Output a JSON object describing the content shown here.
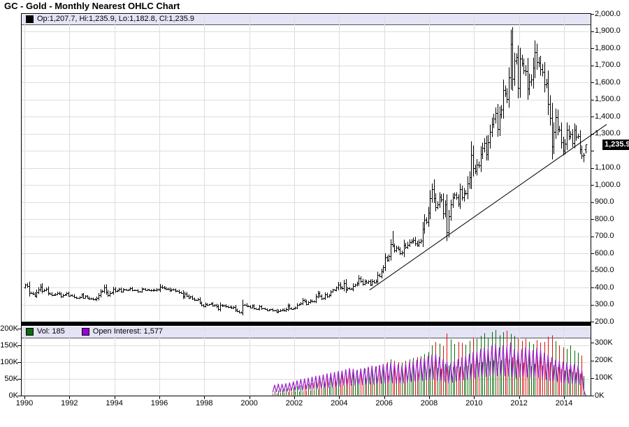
{
  "title": "GC - Gold - Monthly Nearest OHLC Chart",
  "main_panel": {
    "legend_text": "Op:1,207.7, Hi:1,235.9, Lo:1,182.8, Cl:1,235.9",
    "legend_marker_color": "#000000",
    "price_tag": "1,235.9",
    "price_tag_value": 1235.9,
    "price_axis": {
      "min": 200,
      "max": 2000,
      "step": 100
    },
    "price_axis_labels": [
      "2,000.0",
      "1,900.0",
      "1,800.0",
      "1,700.0",
      "1,600.0",
      "1,500.0",
      "1,400.0",
      "1,300.0",
      "1,100.0",
      "1,000.0",
      "900.0",
      "800.0",
      "700.0",
      "600.0",
      "500.0",
      "400.0",
      "300.0",
      "200.0"
    ],
    "price_axis_label_values": [
      2000,
      1900,
      1800,
      1700,
      1600,
      1500,
      1400,
      1300,
      1100,
      1000,
      900,
      800,
      700,
      600,
      500,
      400,
      300,
      200
    ]
  },
  "volume_panel": {
    "vol_legend_text": "Vol: 185",
    "oi_legend_text": "Open Interest: 1,577",
    "left_axis_labels": [
      "200K",
      "150K",
      "100K",
      "50K",
      "0K"
    ],
    "left_axis_values_K": [
      200,
      150,
      100,
      50,
      0
    ],
    "right_axis_labels": [
      "300K",
      "200K",
      "100K",
      "0K"
    ],
    "right_axis_values_K": [
      300,
      200,
      100,
      0
    ]
  },
  "x_axis": {
    "labels": [
      "1990",
      "1992",
      "1994",
      "1996",
      "1998",
      "2000",
      "2002",
      "2004",
      "2006",
      "2008",
      "2010",
      "2012",
      "2014"
    ],
    "years": [
      1990,
      1992,
      1994,
      1996,
      1998,
      2000,
      2002,
      2004,
      2006,
      2008,
      2010,
      2012,
      2014
    ]
  },
  "colors": {
    "strip_background": "#E4E4F6",
    "gridline": "#DDDDDD",
    "ohlc_bar": "#000000",
    "trendline": "#000000",
    "volume_up": "#0B6B0B",
    "volume_down": "#DD1111",
    "open_interest": "#A028C8",
    "oi_legend_swatch": "#9900DD",
    "price_tag_bg": "#000000",
    "price_tag_text": "#FFFFFF",
    "border": "#000000"
  },
  "chart_data": [
    {
      "type": "ohlc",
      "title": "GC - Gold - Monthly Nearest OHLC Chart",
      "xlabel": "",
      "ylabel": "",
      "x_axis_year_range": [
        1989.85,
        2015.2
      ],
      "price_axis_range": [
        200,
        2000
      ],
      "grid": true,
      "first_open": 400,
      "monthly_closes": {
        "1990": [
          415,
          408,
          369,
          368,
          363,
          352,
          372,
          388,
          406,
          380,
          384,
          391
        ],
        "1991": [
          366,
          363,
          356,
          357,
          361,
          368,
          362,
          347,
          355,
          358,
          366,
          353
        ],
        "1992": [
          354,
          353,
          342,
          337,
          337,
          343,
          358,
          340,
          349,
          339,
          334,
          333
        ],
        "1993": [
          330,
          329,
          337,
          354,
          375,
          378,
          400,
          372,
          355,
          369,
          370,
          391
        ],
        "1994": [
          378,
          382,
          390,
          377,
          387,
          386,
          385,
          387,
          395,
          384,
          383,
          383
        ],
        "1995": [
          375,
          376,
          392,
          390,
          385,
          387,
          383,
          382,
          384,
          383,
          387,
          387
        ],
        "1996": [
          405,
          400,
          396,
          391,
          390,
          382,
          387,
          386,
          379,
          379,
          371,
          369
        ],
        "1997": [
          345,
          364,
          351,
          340,
          345,
          334,
          326,
          325,
          332,
          311,
          296,
          289
        ],
        "1998": [
          304,
          297,
          301,
          308,
          293,
          296,
          288,
          273,
          296,
          292,
          294,
          288
        ],
        "1999": [
          285,
          287,
          280,
          286,
          268,
          261,
          255,
          255,
          299,
          300,
          291,
          290
        ],
        "2000": [
          283,
          293,
          278,
          275,
          272,
          289,
          276,
          277,
          273,
          265,
          269,
          272
        ],
        "2001": [
          264,
          266,
          257,
          263,
          267,
          270,
          265,
          273,
          293,
          278,
          274,
          277
        ],
        "2002": [
          282,
          297,
          301,
          308,
          327,
          319,
          304,
          313,
          323,
          317,
          319,
          347
        ],
        "2003": [
          368,
          350,
          334,
          337,
          361,
          346,
          355,
          375,
          386,
          384,
          398,
          416
        ],
        "2004": [
          400,
          396,
          424,
          388,
          394,
          392,
          391,
          410,
          415,
          425,
          453,
          438
        ],
        "2005": [
          422,
          436,
          428,
          435,
          418,
          437,
          429,
          438,
          473,
          466,
          495,
          517
        ],
        "2006": [
          575,
          561,
          582,
          654,
          643,
          616,
          634,
          623,
          599,
          604,
          647,
          638
        ],
        "2007": [
          651,
          665,
          669,
          677,
          659,
          651,
          665,
          672,
          743,
          795,
          783,
          838
        ],
        "2008": [
          923,
          975,
          921,
          871,
          887,
          930,
          913,
          833,
          884,
          724,
          816,
          884
        ],
        "2009": [
          928,
          942,
          925,
          888,
          975,
          927,
          953,
          953,
          1008,
          1045,
          1175,
          1096
        ],
        "2010": [
          1083,
          1118,
          1114,
          1180,
          1215,
          1244,
          1181,
          1248,
          1310,
          1357,
          1386,
          1421
        ],
        "2011": [
          1327,
          1411,
          1439,
          1556,
          1536,
          1502,
          1628,
          1826,
          1622,
          1725,
          1746,
          1566
        ],
        "2012": [
          1737,
          1711,
          1669,
          1664,
          1564,
          1604,
          1615,
          1685,
          1774,
          1719,
          1713,
          1676
        ],
        "2013": [
          1662,
          1588,
          1595,
          1472,
          1393,
          1224,
          1312,
          1396,
          1327,
          1323,
          1250,
          1202
        ],
        "2014": [
          1240,
          1321,
          1284,
          1296,
          1246,
          1322,
          1281,
          1286,
          1209,
          1171,
          1176,
          1235.9
        ]
      },
      "spike_overrides": {
        "1999-09": {
          "high": 329
        },
        "2006-05": {
          "high": 730
        },
        "2008-03": {
          "high": 1033
        },
        "2008-10": {
          "low": 681
        },
        "2011-09": {
          "high": 1923
        },
        "2011-12": {
          "low": 1523
        },
        "2013-06": {
          "low": 1180
        },
        "2014-11": {
          "low": 1132
        }
      },
      "last_bar": {
        "open": 1207.7,
        "high": 1235.9,
        "low": 1182.8,
        "close": 1235.9
      },
      "wick_rule_note": "high/low approximated from closes; exact values shown only for last bar legend",
      "trendline": {
        "from": {
          "year": 2005.35,
          "price": 385
        },
        "to": {
          "year": 2015.2,
          "price": 1290
        }
      }
    },
    {
      "type": "bar",
      "name": "volume",
      "axis": "left",
      "axis_range_K": [
        0,
        206
      ],
      "start_year": 2001,
      "last_value_label": "185",
      "values_K_by_year": {
        "2001": [
          6,
          14,
          7,
          16,
          8,
          18,
          9,
          20,
          10,
          22,
          11,
          25
        ],
        "2002": [
          12,
          28,
          13,
          30,
          14,
          33,
          15,
          35,
          16,
          38,
          18,
          42
        ],
        "2003": [
          20,
          45,
          22,
          48,
          24,
          50,
          25,
          54,
          26,
          57,
          28,
          60
        ],
        "2004": [
          30,
          64,
          32,
          67,
          34,
          70,
          35,
          72,
          36,
          75,
          38,
          78
        ],
        "2005": [
          40,
          80,
          42,
          83,
          43,
          85,
          44,
          88,
          45,
          90,
          47,
          93
        ],
        "2006": [
          55,
          100,
          58,
          108,
          56,
          104,
          54,
          100,
          52,
          98,
          55,
          104
        ],
        "2007": [
          58,
          108,
          60,
          112,
          62,
          115,
          64,
          118,
          68,
          124,
          72,
          130
        ],
        "2008": [
          80,
          150,
          85,
          160,
          82,
          155,
          80,
          148,
          95,
          185,
          90,
          168
        ],
        "2009": [
          85,
          154,
          88,
          160,
          86,
          157,
          84,
          152,
          90,
          164,
          95,
          174
        ],
        "2010": [
          95,
          170,
          98,
          178,
          100,
          186,
          96,
          172,
          102,
          190,
          105,
          196
        ],
        "2011": [
          100,
          180,
          105,
          190,
          110,
          194,
          108,
          184,
          115,
          178,
          105,
          170
        ],
        "2012": [
          95,
          164,
          98,
          170,
          92,
          160,
          88,
          154,
          95,
          166,
          90,
          158
        ],
        "2013": [
          90,
          160,
          95,
          176,
          100,
          180,
          92,
          162,
          85,
          150,
          80,
          144
        ],
        "2014": [
          75,
          140,
          78,
          150,
          72,
          134,
          70,
          128,
          66,
          120,
          58,
          0.2
        ]
      }
    },
    {
      "type": "line",
      "name": "open_interest",
      "axis": "right",
      "axis_range_K": [
        0,
        392
      ],
      "start_year": 2001,
      "last_value_label": "1,577",
      "values_K_by_year": {
        "2001": [
          18,
          60,
          22,
          66,
          20,
          64,
          22,
          68,
          24,
          72,
          26,
          78
        ],
        "2002": [
          30,
          85,
          32,
          92,
          30,
          95,
          34,
          100,
          36,
          105,
          38,
          110
        ],
        "2003": [
          40,
          112,
          42,
          118,
          44,
          124,
          45,
          128,
          46,
          132,
          48,
          138
        ],
        "2004": [
          55,
          140,
          58,
          148,
          60,
          155,
          58,
          150,
          56,
          145,
          60,
          152
        ],
        "2005": [
          62,
          155,
          64,
          162,
          66,
          168,
          64,
          164,
          68,
          172,
          70,
          178
        ],
        "2006": [
          72,
          180,
          74,
          186,
          72,
          182,
          70,
          176,
          68,
          170,
          72,
          180
        ],
        "2007": [
          76,
          186,
          80,
          196,
          82,
          202,
          84,
          208,
          86,
          215,
          90,
          224
        ],
        "2008": [
          92,
          230,
          96,
          238,
          86,
          218,
          82,
          205,
          78,
          192,
          72,
          180
        ],
        "2009": [
          76,
          195,
          82,
          205,
          86,
          215,
          90,
          225,
          94,
          235,
          98,
          245
        ],
        "2010": [
          100,
          252,
          105,
          262,
          110,
          272,
          108,
          266,
          112,
          282,
          116,
          292
        ],
        "2011": [
          112,
          272,
          116,
          284,
          113,
          276,
          110,
          300,
          106,
          262,
          100,
          252
        ],
        "2012": [
          104,
          262,
          108,
          272,
          104,
          266,
          100,
          256,
          106,
          270,
          102,
          260
        ],
        "2013": [
          96,
          242,
          92,
          230,
          86,
          216,
          82,
          202,
          79,
          196,
          76,
          192
        ],
        "2014": [
          73,
          186,
          71,
          180,
          69,
          176,
          67,
          170,
          62,
          142,
          32,
          1.6
        ]
      }
    }
  ]
}
